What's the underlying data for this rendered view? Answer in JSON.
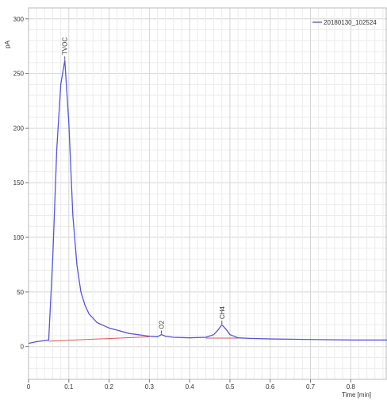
{
  "chart_data": {
    "type": "line",
    "title": "",
    "xlabel": "Time [min]",
    "ylabel": "pA",
    "xlim": [
      0,
      0.89
    ],
    "ylim": [
      -30,
      310
    ],
    "x_ticks": [
      0,
      0.1,
      0.2,
      0.3,
      0.4,
      0.5,
      0.6,
      0.7,
      0.8
    ],
    "x_tick_labels": [
      "0",
      "0.1",
      "0.2",
      "0.3",
      "0.4",
      "0.5",
      "0.6",
      "0.7",
      "0.8"
    ],
    "y_ticks": [
      0,
      50,
      100,
      150,
      200,
      250,
      300
    ],
    "y_tick_labels": [
      "0",
      "50",
      "100",
      "150",
      "200",
      "250",
      "300"
    ],
    "grid": true,
    "legend_position": "top-right",
    "series": [
      {
        "name": "20180130_102524",
        "color": "#5555e0",
        "x": [
          0,
          0.02,
          0.04,
          0.05,
          0.06,
          0.07,
          0.08,
          0.09,
          0.1,
          0.11,
          0.12,
          0.13,
          0.14,
          0.15,
          0.17,
          0.2,
          0.25,
          0.3,
          0.32,
          0.33,
          0.34,
          0.36,
          0.4,
          0.44,
          0.46,
          0.47,
          0.48,
          0.49,
          0.5,
          0.52,
          0.55,
          0.6,
          0.7,
          0.8,
          0.89
        ],
        "y": [
          3,
          4.5,
          5.5,
          6,
          80,
          180,
          240,
          262,
          205,
          120,
          75,
          50,
          38,
          30,
          22,
          17,
          12,
          9.5,
          9,
          11,
          9.5,
          8.5,
          8,
          8.5,
          11,
          15,
          20,
          16,
          11,
          8,
          7.5,
          7,
          6.5,
          6,
          6
        ]
      }
    ],
    "baselines": [
      {
        "color": "#e05555",
        "x": [
          0.05,
          0.3
        ],
        "y": [
          5,
          9
        ]
      },
      {
        "color": "#e05555",
        "x": [
          0.44,
          0.52
        ],
        "y": [
          7.8,
          7.8
        ]
      }
    ],
    "peaks": [
      {
        "label": "TVOC",
        "x": 0.09,
        "y": 262
      },
      {
        "label": "O2",
        "x": 0.33,
        "y": 11
      },
      {
        "label": "CH4",
        "x": 0.48,
        "y": 20
      }
    ]
  }
}
